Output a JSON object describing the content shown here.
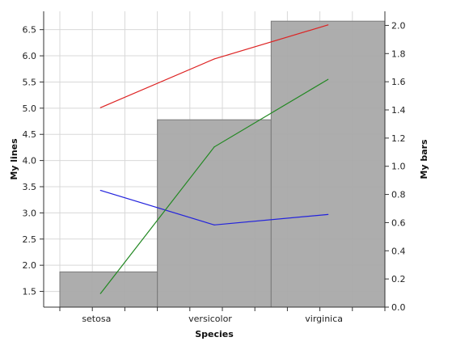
{
  "chart_data": {
    "type": "bar+line",
    "xlabel": "Species",
    "ylabel_left": "My lines",
    "ylabel_right": "My bars",
    "categories": [
      "setosa",
      "versicolor",
      "virginica"
    ],
    "bars": {
      "axis": "right",
      "ylim": [
        0,
        2.1
      ],
      "ticks": [
        "0.0",
        "0.2",
        "0.4",
        "0.6",
        "0.8",
        "1.0",
        "1.2",
        "1.4",
        "1.6",
        "1.8",
        "2.0"
      ],
      "values": [
        0.25,
        1.33,
        2.03
      ],
      "color": "#a9a9a9"
    },
    "lines": {
      "axis": "left",
      "ylim": [
        1.2,
        6.85
      ],
      "ticks": [
        "1.5",
        "2.0",
        "2.5",
        "3.0",
        "3.5",
        "4.0",
        "4.5",
        "5.0",
        "5.5",
        "6.0",
        "6.5"
      ],
      "series": [
        {
          "values": [
            5.01,
            5.94,
            6.59
          ],
          "color": "#dd2222"
        },
        {
          "values": [
            3.43,
            2.77,
            2.97
          ],
          "color": "#2222dd"
        },
        {
          "values": [
            1.46,
            4.26,
            5.55
          ],
          "color": "#228822"
        }
      ]
    },
    "grid": true
  }
}
